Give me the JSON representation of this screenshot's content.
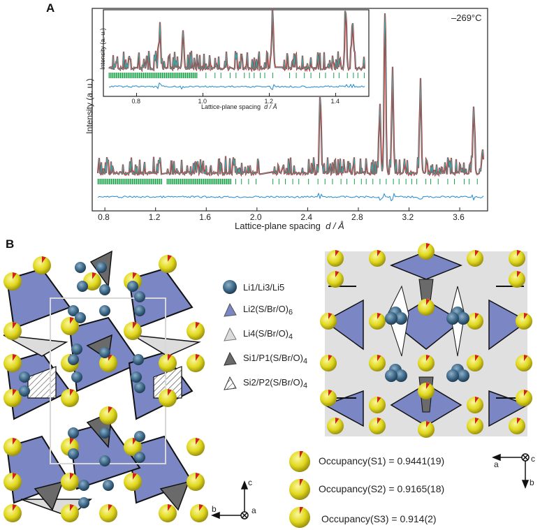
{
  "panel_a": {
    "letter": "A",
    "temperature": "–269°C",
    "chart_data": {
      "type": "line",
      "xlabel_main": "Lattice-plane spacing",
      "xlabel_unit": "d / Å",
      "ylabel": "Intensity (a. u.)",
      "xlim": [
        0.7,
        3.82
      ],
      "xticks": [
        "0.8",
        "1.2",
        "1.6",
        "2.0",
        "2.4",
        "2.8",
        "3.2",
        "3.6"
      ],
      "xtick_values": [
        0.8,
        1.2,
        1.6,
        2.0,
        2.4,
        2.8,
        3.2,
        3.6
      ],
      "major_peaks": [
        {
          "d": 2.5,
          "rel": 0.45
        },
        {
          "d": 2.97,
          "rel": 0.38
        },
        {
          "d": 3.01,
          "rel": 1.0
        },
        {
          "d": 3.07,
          "rel": 0.62
        },
        {
          "d": 3.29,
          "rel": 0.52
        },
        {
          "d": 3.71,
          "rel": 0.42
        },
        {
          "d": 3.78,
          "rel": 0.15
        }
      ],
      "inset": {
        "xlabel_main": "Lattice-plane spacing",
        "xlabel_unit": "d / Å",
        "ylabel": "Intensity (a. u.)",
        "xlim": [
          0.7,
          1.5
        ],
        "xticks": [
          "0.8",
          "1.0",
          "1.2",
          "1.4"
        ],
        "xtick_values": [
          0.8,
          1.0,
          1.2,
          1.4
        ],
        "major_peaks": [
          {
            "d": 0.87,
            "rel": 0.6
          },
          {
            "d": 0.94,
            "rel": 0.7
          },
          {
            "d": 1.21,
            "rel": 1.0
          },
          {
            "d": 1.43,
            "rel": 1.0
          },
          {
            "d": 1.45,
            "rel": 0.72
          }
        ]
      }
    }
  },
  "panel_b": {
    "letter": "B",
    "legend": [
      {
        "label": "Li1/Li3/Li5",
        "icon": "sphere-dark-blue"
      },
      {
        "label": "Li2(S/Br/O)",
        "sub": "6",
        "icon": "polyhedron-lavender"
      },
      {
        "label": "Li4(S/Br/O)",
        "sub": "4",
        "icon": "tetrahedron-light-grey"
      },
      {
        "label": "Si1/P1(S/Br/O)",
        "sub": "4",
        "icon": "tetrahedron-dark-grey"
      },
      {
        "label": "Si2/P2(S/Br/O)",
        "sub": "4",
        "icon": "tetrahedron-hatched"
      }
    ],
    "occupancies": [
      {
        "text": "Occupancy(S1) = 0.9441(19)"
      },
      {
        "text": "Occupancy(S2) = 0.9165(18)"
      },
      {
        "text": "Occupancy(S3) = 0.914(2)"
      }
    ],
    "axes_left": {
      "up": "c",
      "left": "b",
      "into": "a"
    },
    "axes_right": {
      "left": "a",
      "down": "b",
      "into": "c"
    }
  },
  "colors": {
    "observed": "#d62020",
    "calculated": "#2ab5b5",
    "reflections": "#1aa04a",
    "difference": "#1f8ad0",
    "li_sphere": "#3e6a8a",
    "li2_poly": "#7b86c4",
    "li4_poly": "#dcdcdc",
    "si1_poly": "#6a6a6a",
    "s_atom": "#e8e030"
  }
}
